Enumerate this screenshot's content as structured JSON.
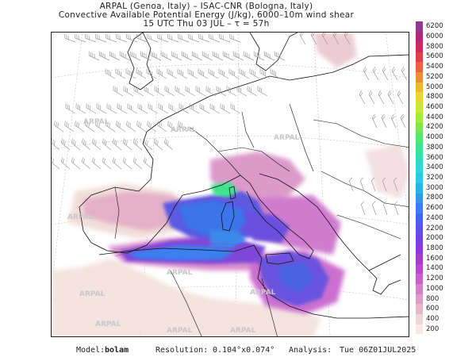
{
  "header": {
    "line1": "ARPAL (Genoa, Italy)  –  ISAC-CNR (Bologna, Italy)",
    "line2": "Convective Available Potential Energy (J/kg), 6000–10m wind shear",
    "line3": "15 UTC Thu 03 JUL  –  τ = 57h"
  },
  "map": {
    "watermark": "ARPAL",
    "colors": {
      "land": "#ffffff",
      "sea": "#ffffff",
      "border": "#111111",
      "graticule": "#bfbfbf",
      "barb": "#9a9a9a"
    }
  },
  "legend": {
    "levels": [
      "200",
      "400",
      "600",
      "800",
      "1000",
      "1200",
      "1400",
      "1600",
      "1800",
      "2000",
      "2200",
      "2400",
      "2600",
      "2800",
      "3000",
      "3200",
      "3400",
      "3600",
      "3800",
      "4000",
      "4200",
      "4400",
      "4600",
      "4800",
      "5000",
      "5200",
      "5400",
      "5600",
      "5800",
      "6000",
      "6200"
    ],
    "colors": [
      "#f7eae4",
      "#efd6d3",
      "#e7b9c6",
      "#de9dc6",
      "#d77fcb",
      "#cc5fce",
      "#bf45d2",
      "#a63bd3",
      "#8c3ad6",
      "#7346db",
      "#5a55e0",
      "#4466e6",
      "#3b80ea",
      "#3498ee",
      "#2fb1f0",
      "#2dc7ec",
      "#2fd7d6",
      "#34dfb5",
      "#3fe38f",
      "#58e66b",
      "#7ce84e",
      "#a5ea3f",
      "#cbe638",
      "#e8d634",
      "#f0b534",
      "#ee8e36",
      "#e6663e",
      "#d9434c",
      "#c52e62",
      "#ad2a7c",
      "#97388f"
    ]
  },
  "footer": {
    "model_label": "Model:",
    "model_name": "bolam",
    "resolution_label": "Resolution:",
    "resolution_value": "0.104°x0.074°",
    "analysis_label": "Analysis:",
    "analysis_value": "Tue 06Z01JUL2025"
  }
}
